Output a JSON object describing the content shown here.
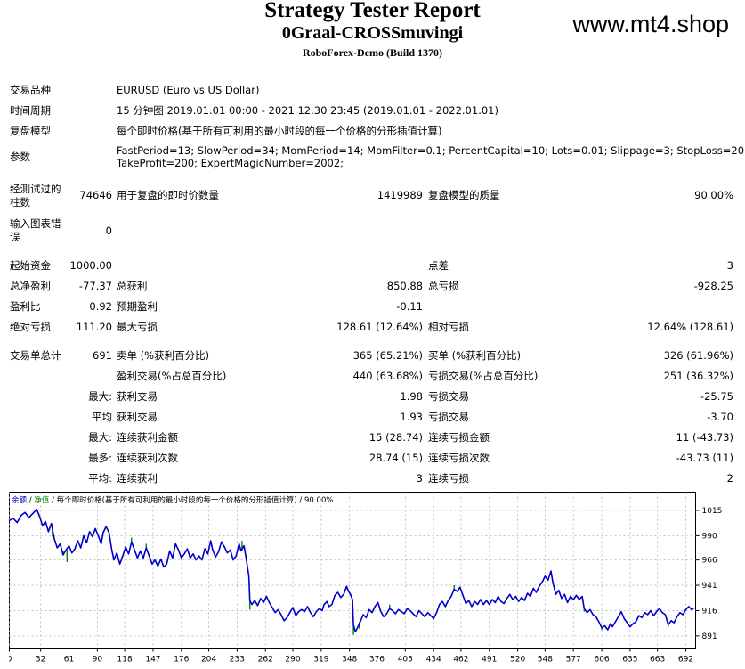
{
  "header": {
    "title": "Strategy Tester Report",
    "expert": "0Graal-CROSSmuvingi",
    "server_build": "RoboForex-Demo (Build 1370)",
    "watermark": "www.mt4.shop"
  },
  "info": {
    "symbol_label": "交易品种",
    "symbol_value": "EURUSD (Euro vs US Dollar)",
    "period_label": "时间周期",
    "period_value": "15 分钟图 2019.01.01 00:00 - 2021.12.30 23:45 (2019.01.01 - 2022.01.01)",
    "model_label": "复盘模型",
    "model_value": "每个即时价格(基于所有可利用的最小时段的每一个价格的分形插值计算)",
    "params_label": "参数",
    "params_line1": "FastPeriod=13; SlowPeriod=34; MomPeriod=14; MomFilter=0.1; PercentCapital=10; Lots=0.01; Slippage=3; StopLoss=20;",
    "params_line2": "TakeProfit=200; ExpertMagicNumber=2002;"
  },
  "bars": {
    "bars_label_1": "经测试过的",
    "bars_label_2": "柱数",
    "bars_value": "74646",
    "ticks_label": "用于复盘的即时价数量",
    "ticks_value": "1419989",
    "quality_label": "复盘模型的质量",
    "quality_value": "90.00%",
    "errors_label_1": "输入图表错",
    "errors_label_2": "误",
    "errors_value": "0"
  },
  "stats": {
    "initial_deposit_label": "起始资金",
    "initial_deposit_value": "1000.00",
    "spread_label": "点差",
    "spread_value": "3",
    "net_profit_label": "总净盈利",
    "net_profit_value": "-77.37",
    "gross_profit_label": "总获利",
    "gross_profit_value": "850.88",
    "gross_loss_label": "总亏损",
    "gross_loss_value": "-928.25",
    "profit_factor_label": "盈利比",
    "profit_factor_value": "0.92",
    "expected_payoff_label": "预期盈利",
    "expected_payoff_value": "-0.11",
    "abs_drawdown_label": "绝对亏损",
    "abs_drawdown_value": "111.20",
    "max_drawdown_label": "最大亏损",
    "max_drawdown_value": "128.61 (12.64%)",
    "rel_drawdown_label": "相对亏损",
    "rel_drawdown_value": "12.64% (128.61)",
    "total_trades_label": "交易单总计",
    "total_trades_value": "691",
    "short_label": "卖单 (%获利百分比)",
    "short_value": "365 (65.21%)",
    "long_label": "买单 (%获利百分比)",
    "long_value": "326 (61.96%)",
    "profit_trades_label": "盈利交易(%占总百分比)",
    "profit_trades_value": "440 (63.68%)",
    "loss_trades_label": "亏损交易(%占总百分比)",
    "loss_trades_value": "251 (36.32%)",
    "largest_prefix": "最大:",
    "largest_profit_label": "获利交易",
    "largest_profit_value": "1.98",
    "largest_loss_label": "亏损交易",
    "largest_loss_value": "-25.75",
    "average_prefix": "平均",
    "average_profit_label": "获利交易",
    "average_profit_value": "1.93",
    "average_loss_label": "亏损交易",
    "average_loss_value": "-3.70",
    "max_cons_prefix": "最大:",
    "max_cons_wins_label": "连续获利金额",
    "max_cons_wins_value": "15 (28.74)",
    "max_cons_losses_label": "连续亏损金额",
    "max_cons_losses_value": "11 (-43.73)",
    "maximal_prefix": "最多:",
    "maximal_cons_profit_label": "连续获利次数",
    "maximal_cons_profit_value": "28.74 (15)",
    "maximal_cons_loss_label": "连续亏损次数",
    "maximal_cons_loss_value": "-43.73 (11)",
    "avg_cons_prefix": "平均:",
    "avg_cons_wins_label": "连续获利",
    "avg_cons_wins_value": "3",
    "avg_cons_losses_label": "连续亏损",
    "avg_cons_losses_value": "2"
  },
  "legend": {
    "balance": "余额",
    "sep1": " / ",
    "equity": "净值",
    "sep2": " / ",
    "model": "每个即时价格(基于所有可利用的最小时段的每一个价格的分形插值计算)",
    "sep3": " / ",
    "quality": "90.00%"
  },
  "chart_data": {
    "type": "line",
    "series": [
      {
        "name": "余额",
        "color": "#0000c8"
      },
      {
        "name": "净值",
        "color": "#008800"
      }
    ],
    "x_ticks": [
      0,
      32,
      61,
      90,
      118,
      147,
      176,
      204,
      233,
      262,
      290,
      319,
      348,
      376,
      405,
      434,
      462,
      491,
      520,
      548,
      577,
      606,
      635,
      663,
      692
    ],
    "y_ticks": [
      891,
      916,
      941,
      966,
      990,
      1015
    ],
    "xlim": [
      0,
      702
    ],
    "ylim": [
      879,
      1033
    ],
    "balance": [
      [
        0,
        1005
      ],
      [
        4,
        1007
      ],
      [
        8,
        1003
      ],
      [
        12,
        1010
      ],
      [
        16,
        1013
      ],
      [
        20,
        1008
      ],
      [
        24,
        1012
      ],
      [
        28,
        1016
      ],
      [
        31,
        1009
      ],
      [
        34,
        1000
      ],
      [
        37,
        1004
      ],
      [
        40,
        994
      ],
      [
        43,
        1002
      ],
      [
        46,
        987
      ],
      [
        49,
        978
      ],
      [
        52,
        982
      ],
      [
        55,
        971
      ],
      [
        58,
        976
      ],
      [
        61,
        980
      ],
      [
        64,
        973
      ],
      [
        67,
        977
      ],
      [
        70,
        985
      ],
      [
        73,
        978
      ],
      [
        76,
        990
      ],
      [
        79,
        983
      ],
      [
        82,
        994
      ],
      [
        85,
        989
      ],
      [
        88,
        997
      ],
      [
        91,
        990
      ],
      [
        94,
        982
      ],
      [
        96,
        993
      ],
      [
        99,
        999
      ],
      [
        102,
        993
      ],
      [
        105,
        975
      ],
      [
        107,
        966
      ],
      [
        110,
        973
      ],
      [
        113,
        962
      ],
      [
        116,
        970
      ],
      [
        119,
        979
      ],
      [
        122,
        972
      ],
      [
        125,
        984
      ],
      [
        128,
        976
      ],
      [
        131,
        968
      ],
      [
        134,
        975
      ],
      [
        137,
        968
      ],
      [
        140,
        978
      ],
      [
        143,
        970
      ],
      [
        146,
        962
      ],
      [
        149,
        966
      ],
      [
        152,
        960
      ],
      [
        155,
        967
      ],
      [
        158,
        959
      ],
      [
        161,
        962
      ],
      [
        164,
        975
      ],
      [
        167,
        968
      ],
      [
        170,
        982
      ],
      [
        173,
        976
      ],
      [
        176,
        968
      ],
      [
        179,
        972
      ],
      [
        182,
        977
      ],
      [
        185,
        968
      ],
      [
        188,
        972
      ],
      [
        191,
        966
      ],
      [
        194,
        970
      ],
      [
        197,
        966
      ],
      [
        200,
        977
      ],
      [
        203,
        972
      ],
      [
        206,
        985
      ],
      [
        208,
        976
      ],
      [
        211,
        969
      ],
      [
        214,
        974
      ],
      [
        217,
        984
      ],
      [
        220,
        979
      ],
      [
        223,
        973
      ],
      [
        226,
        976
      ],
      [
        229,
        966
      ],
      [
        232,
        970
      ],
      [
        235,
        982
      ],
      [
        237,
        975
      ],
      [
        240,
        980
      ],
      [
        242,
        969
      ],
      [
        245,
        950
      ],
      [
        246,
        926
      ],
      [
        248,
        922
      ],
      [
        251,
        926
      ],
      [
        254,
        921
      ],
      [
        257,
        928
      ],
      [
        260,
        924
      ],
      [
        263,
        930
      ],
      [
        266,
        924
      ],
      [
        269,
        919
      ],
      [
        272,
        914
      ],
      [
        275,
        917
      ],
      [
        278,
        912
      ],
      [
        281,
        906
      ],
      [
        284,
        909
      ],
      [
        287,
        914
      ],
      [
        290,
        919
      ],
      [
        293,
        911
      ],
      [
        296,
        915
      ],
      [
        299,
        917
      ],
      [
        302,
        915
      ],
      [
        305,
        920
      ],
      [
        308,
        914
      ],
      [
        311,
        910
      ],
      [
        314,
        915
      ],
      [
        317,
        918
      ],
      [
        320,
        916
      ],
      [
        322,
        922
      ],
      [
        325,
        925
      ],
      [
        327,
        920
      ],
      [
        330,
        922
      ],
      [
        333,
        931
      ],
      [
        336,
        934
      ],
      [
        339,
        929
      ],
      [
        342,
        932
      ],
      [
        345,
        940
      ],
      [
        347,
        935
      ],
      [
        349,
        932
      ],
      [
        351,
        927
      ],
      [
        352,
        902
      ],
      [
        354,
        895
      ],
      [
        356,
        899
      ],
      [
        359,
        905
      ],
      [
        362,
        912
      ],
      [
        365,
        909
      ],
      [
        368,
        917
      ],
      [
        371,
        914
      ],
      [
        374,
        920
      ],
      [
        377,
        924
      ],
      [
        380,
        915
      ],
      [
        383,
        910
      ],
      [
        386,
        913
      ],
      [
        389,
        918
      ],
      [
        392,
        916
      ],
      [
        395,
        913
      ],
      [
        398,
        917
      ],
      [
        401,
        915
      ],
      [
        404,
        913
      ],
      [
        407,
        918
      ],
      [
        410,
        916
      ],
      [
        413,
        913
      ],
      [
        416,
        910
      ],
      [
        419,
        916
      ],
      [
        422,
        913
      ],
      [
        425,
        910
      ],
      [
        428,
        914
      ],
      [
        431,
        911
      ],
      [
        434,
        908
      ],
      [
        437,
        914
      ],
      [
        440,
        922
      ],
      [
        443,
        925
      ],
      [
        446,
        920
      ],
      [
        449,
        926
      ],
      [
        452,
        930
      ],
      [
        455,
        937
      ],
      [
        458,
        935
      ],
      [
        461,
        939
      ],
      [
        464,
        931
      ],
      [
        467,
        923
      ],
      [
        470,
        926
      ],
      [
        473,
        920
      ],
      [
        476,
        925
      ],
      [
        479,
        922
      ],
      [
        482,
        927
      ],
      [
        485,
        922
      ],
      [
        488,
        926
      ],
      [
        491,
        922
      ],
      [
        494,
        927
      ],
      [
        497,
        924
      ],
      [
        500,
        930
      ],
      [
        503,
        925
      ],
      [
        506,
        923
      ],
      [
        509,
        928
      ],
      [
        512,
        932
      ],
      [
        515,
        927
      ],
      [
        518,
        930
      ],
      [
        521,
        925
      ],
      [
        524,
        929
      ],
      [
        527,
        926
      ],
      [
        530,
        933
      ],
      [
        533,
        930
      ],
      [
        536,
        938
      ],
      [
        539,
        934
      ],
      [
        542,
        940
      ],
      [
        545,
        944
      ],
      [
        548,
        950
      ],
      [
        551,
        946
      ],
      [
        554,
        955
      ],
      [
        556,
        944
      ],
      [
        559,
        932
      ],
      [
        562,
        936
      ],
      [
        565,
        928
      ],
      [
        568,
        932
      ],
      [
        571,
        924
      ],
      [
        574,
        930
      ],
      [
        577,
        927
      ],
      [
        580,
        931
      ],
      [
        583,
        927
      ],
      [
        586,
        930
      ],
      [
        588,
        918
      ],
      [
        591,
        914
      ],
      [
        594,
        917
      ],
      [
        597,
        912
      ],
      [
        600,
        910
      ],
      [
        603,
        905
      ],
      [
        606,
        899
      ],
      [
        609,
        901
      ],
      [
        612,
        897
      ],
      [
        615,
        903
      ],
      [
        617,
        900
      ],
      [
        620,
        905
      ],
      [
        623,
        910
      ],
      [
        626,
        915
      ],
      [
        629,
        908
      ],
      [
        632,
        904
      ],
      [
        635,
        900
      ],
      [
        638,
        903
      ],
      [
        641,
        905
      ],
      [
        644,
        911
      ],
      [
        647,
        909
      ],
      [
        650,
        914
      ],
      [
        653,
        912
      ],
      [
        656,
        916
      ],
      [
        659,
        911
      ],
      [
        662,
        915
      ],
      [
        665,
        918
      ],
      [
        668,
        914
      ],
      [
        671,
        912
      ],
      [
        674,
        902
      ],
      [
        677,
        906
      ],
      [
        680,
        904
      ],
      [
        683,
        910
      ],
      [
        686,
        914
      ],
      [
        689,
        912
      ],
      [
        692,
        917
      ],
      [
        695,
        920
      ],
      [
        698,
        917
      ],
      [
        700,
        918
      ]
    ],
    "equity_spikes": [
      [
        44,
        989
      ],
      [
        55,
        975
      ],
      [
        59,
        964
      ],
      [
        125,
        988
      ],
      [
        140,
        982
      ],
      [
        238,
        985
      ],
      [
        246,
        917
      ],
      [
        352,
        892
      ],
      [
        358,
        898
      ],
      [
        389,
        922
      ],
      [
        455,
        941
      ],
      [
        556,
        942
      ],
      [
        588,
        915
      ],
      [
        606,
        897
      ],
      [
        674,
        900
      ]
    ]
  }
}
